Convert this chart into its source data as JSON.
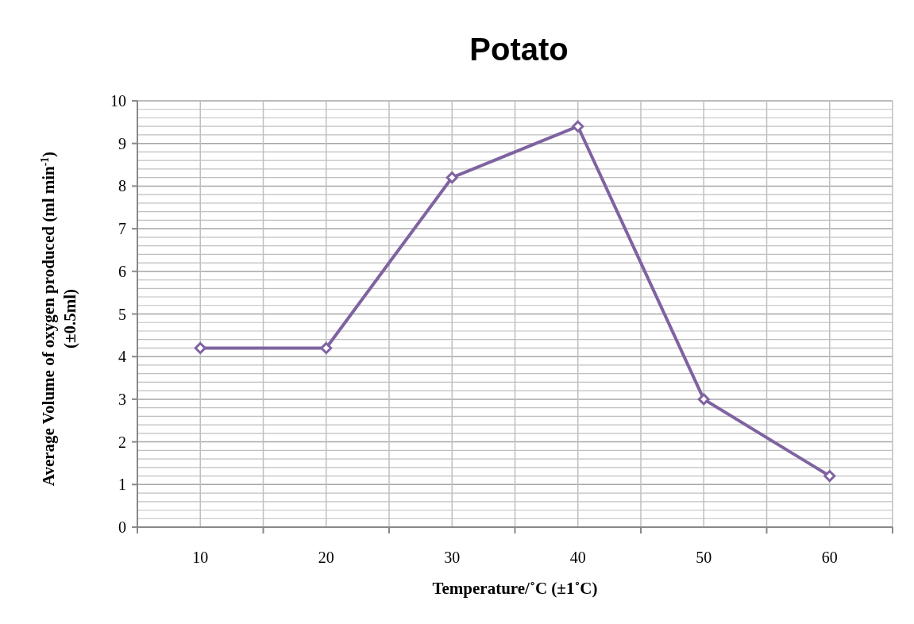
{
  "chart_data": {
    "type": "line",
    "title": "Potato",
    "xlabel": "Temperature/˚C (±1˚C)",
    "ylabel": "Average Volume of oxygen produced (ml min$^{-1}$)\n(±0.5ml)",
    "categories": [
      "10",
      "20",
      "30",
      "40",
      "50",
      "60"
    ],
    "series": [
      {
        "color": "#7f63a1",
        "values": [
          4.2,
          4.2,
          8.2,
          9.4,
          3.0,
          1.2
        ]
      }
    ],
    "ylim": [
      0,
      10
    ],
    "yticks": [
      0,
      1,
      2,
      3,
      4,
      5,
      6,
      7,
      8,
      9,
      10
    ],
    "grid": true,
    "marker": "diamond",
    "line_style": "solid"
  }
}
